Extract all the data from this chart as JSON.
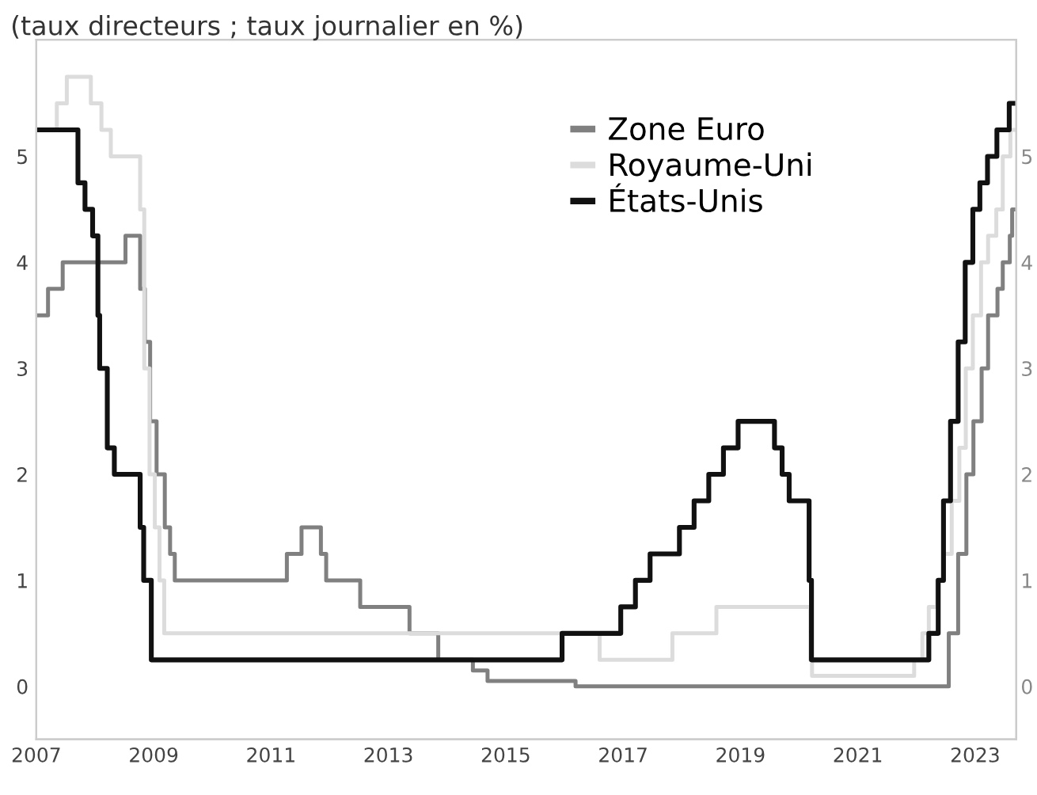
{
  "chart_data": {
    "type": "step",
    "title": "(taux directeurs ; taux journalier en %)",
    "xlim": [
      2007.0,
      2023.7
    ],
    "xticks": [
      2007,
      2009,
      2011,
      2013,
      2015,
      2017,
      2019,
      2021,
      2023
    ],
    "ylim": [
      -0.5,
      6.1
    ],
    "yticks": [
      0,
      1,
      2,
      3,
      4,
      5
    ],
    "y2lim": [
      -0.5,
      6.1
    ],
    "y2ticks": [
      0,
      1,
      2,
      3,
      4,
      5
    ],
    "grid": false,
    "legend": "top",
    "line_style": "solid",
    "marker": "none",
    "series": [
      {
        "name": "Zone Euro",
        "color": "#808080",
        "x": [
          2007.0,
          2007.2,
          2007.45,
          2008.52,
          2008.77,
          2008.85,
          2008.94,
          2009.05,
          2009.19,
          2009.28,
          2009.36,
          2011.27,
          2011.52,
          2011.85,
          2011.94,
          2012.52,
          2013.36,
          2013.85,
          2014.44,
          2014.69,
          2016.19,
          2022.55,
          2022.71,
          2022.85,
          2022.97,
          2023.11,
          2023.22,
          2023.38,
          2023.47,
          2023.59,
          2023.63,
          2023.67
        ],
        "values": [
          3.5,
          3.75,
          4.0,
          4.25,
          3.75,
          3.25,
          2.5,
          2.0,
          1.5,
          1.25,
          1.0,
          1.25,
          1.5,
          1.25,
          1.0,
          0.75,
          0.5,
          0.25,
          0.15,
          0.05,
          0.0,
          0.5,
          1.25,
          2.0,
          2.5,
          3.0,
          3.5,
          3.75,
          4.0,
          4.25,
          4.5,
          4.5
        ]
      },
      {
        "name": "Royaume-Uni",
        "color": "#dcdcdc",
        "x": [
          2007.0,
          2007.35,
          2007.52,
          2007.93,
          2008.11,
          2008.27,
          2008.77,
          2008.84,
          2008.93,
          2009.02,
          2009.1,
          2009.18,
          2016.6,
          2017.84,
          2018.59,
          2020.19,
          2020.22,
          2021.96,
          2022.1,
          2022.21,
          2022.35,
          2022.46,
          2022.6,
          2022.73,
          2022.84,
          2022.96,
          2023.1,
          2023.22,
          2023.36,
          2023.47,
          2023.6,
          2023.67
        ],
        "values": [
          5.25,
          5.5,
          5.75,
          5.5,
          5.25,
          5.0,
          4.5,
          3.0,
          2.0,
          1.5,
          1.0,
          0.5,
          0.25,
          0.5,
          0.75,
          0.25,
          0.1,
          0.25,
          0.5,
          0.75,
          1.0,
          1.25,
          1.75,
          2.25,
          3.0,
          3.5,
          4.0,
          4.25,
          4.5,
          5.0,
          5.25,
          5.25
        ]
      },
      {
        "name": "États-Unis",
        "color": "#111111",
        "x": [
          2007.0,
          2007.71,
          2007.83,
          2007.96,
          2008.05,
          2008.08,
          2008.21,
          2008.33,
          2008.77,
          2008.83,
          2008.96,
          2015.96,
          2016.96,
          2017.21,
          2017.46,
          2017.96,
          2018.21,
          2018.46,
          2018.71,
          2018.96,
          2019.58,
          2019.71,
          2019.83,
          2020.17,
          2020.21,
          2022.21,
          2022.37,
          2022.46,
          2022.58,
          2022.71,
          2022.83,
          2022.96,
          2023.08,
          2023.21,
          2023.37,
          2023.58,
          2023.65
        ],
        "values": [
          5.25,
          4.75,
          4.5,
          4.25,
          3.5,
          3.0,
          2.25,
          2.0,
          1.5,
          1.0,
          0.25,
          0.5,
          0.75,
          1.0,
          1.25,
          1.5,
          1.75,
          2.0,
          2.25,
          2.5,
          2.25,
          2.0,
          1.75,
          1.0,
          0.25,
          0.5,
          1.0,
          1.75,
          2.5,
          3.25,
          4.0,
          4.5,
          4.75,
          5.0,
          5.25,
          5.5,
          5.5
        ]
      }
    ]
  }
}
